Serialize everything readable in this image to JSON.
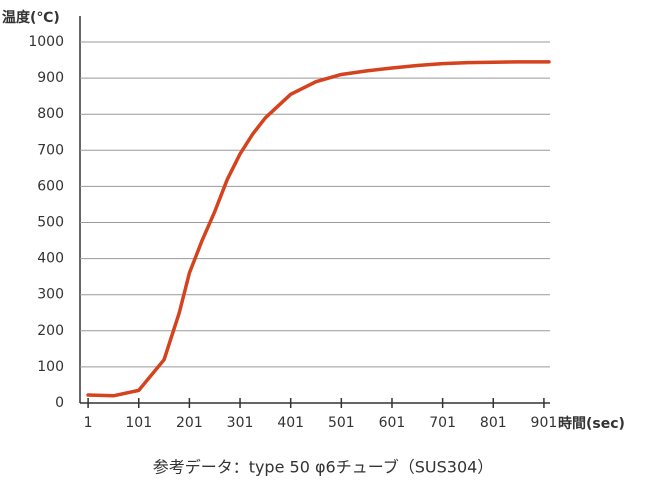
{
  "chart_data": {
    "type": "line",
    "y_label": "温度(℃)",
    "x_label": "時間(sec)",
    "caption": "参考データ：type 50 φ6チューブ（SUS304）",
    "x": [
      1,
      51,
      101,
      151,
      181,
      201,
      226,
      251,
      276,
      301,
      326,
      351,
      401,
      451,
      501,
      551,
      601,
      651,
      701,
      751,
      801,
      851,
      911
    ],
    "series": [
      {
        "name": "SUS304",
        "color": "#d4421e",
        "values": [
          22,
          20,
          35,
          120,
          250,
          360,
          450,
          530,
          620,
          690,
          745,
          790,
          855,
          890,
          910,
          920,
          928,
          935,
          940,
          943,
          944,
          945,
          945
        ]
      }
    ],
    "xlim": [
      -15,
      913
    ],
    "xticks": [
      1,
      101,
      201,
      301,
      401,
      501,
      601,
      701,
      801,
      901
    ],
    "ylim": [
      0,
      1000
    ],
    "yticks": [
      0,
      100,
      200,
      300,
      400,
      500,
      600,
      700,
      800,
      900,
      1000
    ],
    "grid": true
  }
}
